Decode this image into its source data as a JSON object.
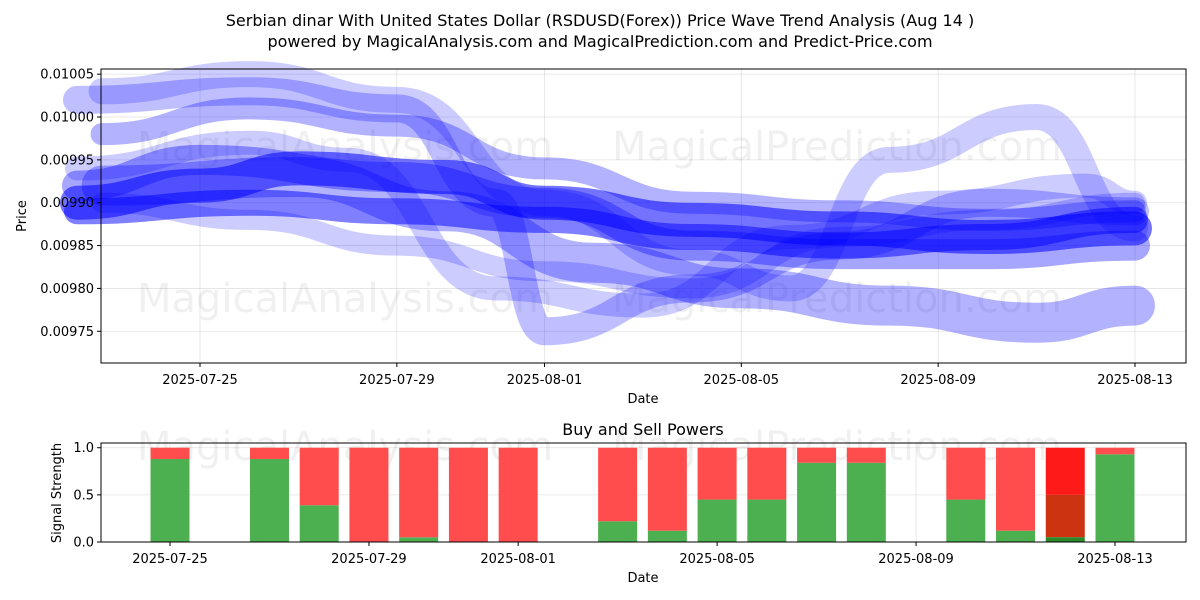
{
  "title_line1": "Serbian dinar With United States Dollar (RSDUSD(Forex)) Price Wave Trend Analysis (Aug 14 )",
  "title_line2": "powered by MagicalAnalysis.com and MagicalPrediction.com and Predict-Price.com",
  "watermarks": [
    "MagicalAnalysis.com",
    "MagicalPrediction.com"
  ],
  "chart_data": [
    {
      "type": "line",
      "xlabel": "Date",
      "ylabel": "Price",
      "x_ticks": [
        "2025-07-25",
        "2025-07-29",
        "2025-08-01",
        "2025-08-05",
        "2025-08-09",
        "2025-08-13"
      ],
      "y_ticks": [
        "0.00975",
        "0.00980",
        "0.00985",
        "0.00990",
        "0.00995",
        "0.01000",
        "0.01005"
      ],
      "ylim": [
        0.009713,
        0.010056
      ],
      "xlim": [
        "2025-07-22T12:00",
        "2025-08-14T01:00"
      ],
      "grid": true,
      "color": "#0000ff",
      "series": [
        {
          "x": [
            "2025-07-22T12:00",
            "2025-07-25",
            "2025-07-27",
            "2025-07-30",
            "2025-08-01",
            "2025-08-04",
            "2025-08-07",
            "2025-08-10",
            "2025-08-13"
          ],
          "values": [
            0.0099,
            0.00992,
            0.00994,
            0.00993,
            0.0099,
            0.00988,
            0.00987,
            0.00986,
            0.00987
          ]
        },
        {
          "x": [
            "2025-07-22T12:00",
            "2025-07-26",
            "2025-07-29",
            "2025-08-01",
            "2025-08-04",
            "2025-08-07",
            "2025-08-10",
            "2025-08-13"
          ],
          "values": [
            0.00989,
            0.0099,
            0.00989,
            0.00988,
            0.00986,
            0.00985,
            0.00986,
            0.00988
          ]
        },
        {
          "x": [
            "2025-07-22T12:00",
            "2025-07-25",
            "2025-07-29",
            "2025-08-01",
            "2025-08-04",
            "2025-08-07",
            "2025-08-10",
            "2025-08-13"
          ],
          "values": [
            0.00992,
            0.00995,
            0.00993,
            0.0099,
            0.00985,
            0.00984,
            0.00984,
            0.00985
          ]
        },
        {
          "x": [
            "2025-07-23",
            "2025-07-26",
            "2025-07-29",
            "2025-08-01",
            "2025-08-04",
            "2025-08-07",
            "2025-08-10",
            "2025-08-13"
          ],
          "values": [
            0.00998,
            0.01001,
            0.00999,
            0.00994,
            0.0099,
            0.00989,
            0.00988,
            0.00989
          ]
        },
        {
          "x": [
            "2025-07-22T12:00",
            "2025-07-26",
            "2025-07-29",
            "2025-07-31",
            "2025-08-01",
            "2025-08-04",
            "2025-08-07",
            "2025-08-10",
            "2025-08-13"
          ],
          "values": [
            0.01002,
            0.01003,
            0.01001,
            0.0099,
            0.00975,
            0.0098,
            0.00985,
            0.0099,
            0.00989
          ]
        },
        {
          "x": [
            "2025-07-23",
            "2025-07-26",
            "2025-07-29",
            "2025-08-01",
            "2025-08-04",
            "2025-08-06",
            "2025-08-08",
            "2025-08-11",
            "2025-08-13"
          ],
          "values": [
            0.01003,
            0.01005,
            0.01002,
            0.0099,
            0.00983,
            0.0098,
            0.00995,
            0.01,
            0.00987
          ]
        },
        {
          "x": [
            "2025-07-22T12:00",
            "2025-07-26",
            "2025-07-28",
            "2025-07-31",
            "2025-08-03",
            "2025-08-06",
            "2025-08-09",
            "2025-08-12",
            "2025-08-13"
          ],
          "values": [
            0.00994,
            0.00997,
            0.00995,
            0.0098,
            0.00978,
            0.00986,
            0.0099,
            0.00992,
            0.0099
          ]
        },
        {
          "x": [
            "2025-07-23",
            "2025-07-27",
            "2025-07-30",
            "2025-08-02",
            "2025-08-05",
            "2025-08-08",
            "2025-08-11",
            "2025-08-13"
          ],
          "values": [
            0.00992,
            0.00993,
            0.00989,
            0.00983,
            0.0098,
            0.00978,
            0.00976,
            0.00978
          ]
        },
        {
          "x": [
            "2025-07-23",
            "2025-07-26",
            "2025-07-29",
            "2025-08-01",
            "2025-08-04",
            "2025-08-07",
            "2025-08-10",
            "2025-08-13"
          ],
          "values": [
            0.0099,
            0.00988,
            0.00985,
            0.00982,
            0.0098,
            0.00986,
            0.00988,
            0.0099
          ]
        }
      ]
    },
    {
      "type": "bar",
      "title": "Buy and Sell Powers",
      "xlabel": "Date",
      "ylabel": "Signal Strength",
      "x_ticks": [
        "2025-07-25",
        "2025-07-29",
        "2025-08-01",
        "2025-08-05",
        "2025-08-09",
        "2025-08-13"
      ],
      "y_ticks": [
        "0.0",
        "0.5",
        "1.0"
      ],
      "ylim": [
        0,
        1.05
      ],
      "grid": true,
      "buy_color": "#4caf50",
      "sell_color": "#ff4c4c",
      "strong_sell_color": "#ff1a1a",
      "mixed_color": "#cc3311",
      "categories": [
        "2025-07-25",
        "2025-07-27",
        "2025-07-28",
        "2025-07-29",
        "2025-07-30",
        "2025-07-31",
        "2025-08-01",
        "2025-08-03",
        "2025-08-04",
        "2025-08-05",
        "2025-08-06",
        "2025-08-07",
        "2025-08-08",
        "2025-08-10",
        "2025-08-11",
        "2025-08-12",
        "2025-08-13"
      ],
      "series": [
        {
          "name": "Buy",
          "values": [
            0.88,
            0.88,
            0.39,
            0.0,
            0.05,
            0.0,
            0.0,
            0.22,
            0.12,
            0.45,
            0.45,
            0.84,
            0.84,
            0.45,
            0.12,
            0.05,
            0.93
          ]
        },
        {
          "name": "Sell",
          "values": [
            0.12,
            0.12,
            0.61,
            1.0,
            0.95,
            1.0,
            1.0,
            0.78,
            0.88,
            0.55,
            0.55,
            0.16,
            0.16,
            0.55,
            0.88,
            0.95,
            0.07
          ]
        }
      ]
    }
  ]
}
